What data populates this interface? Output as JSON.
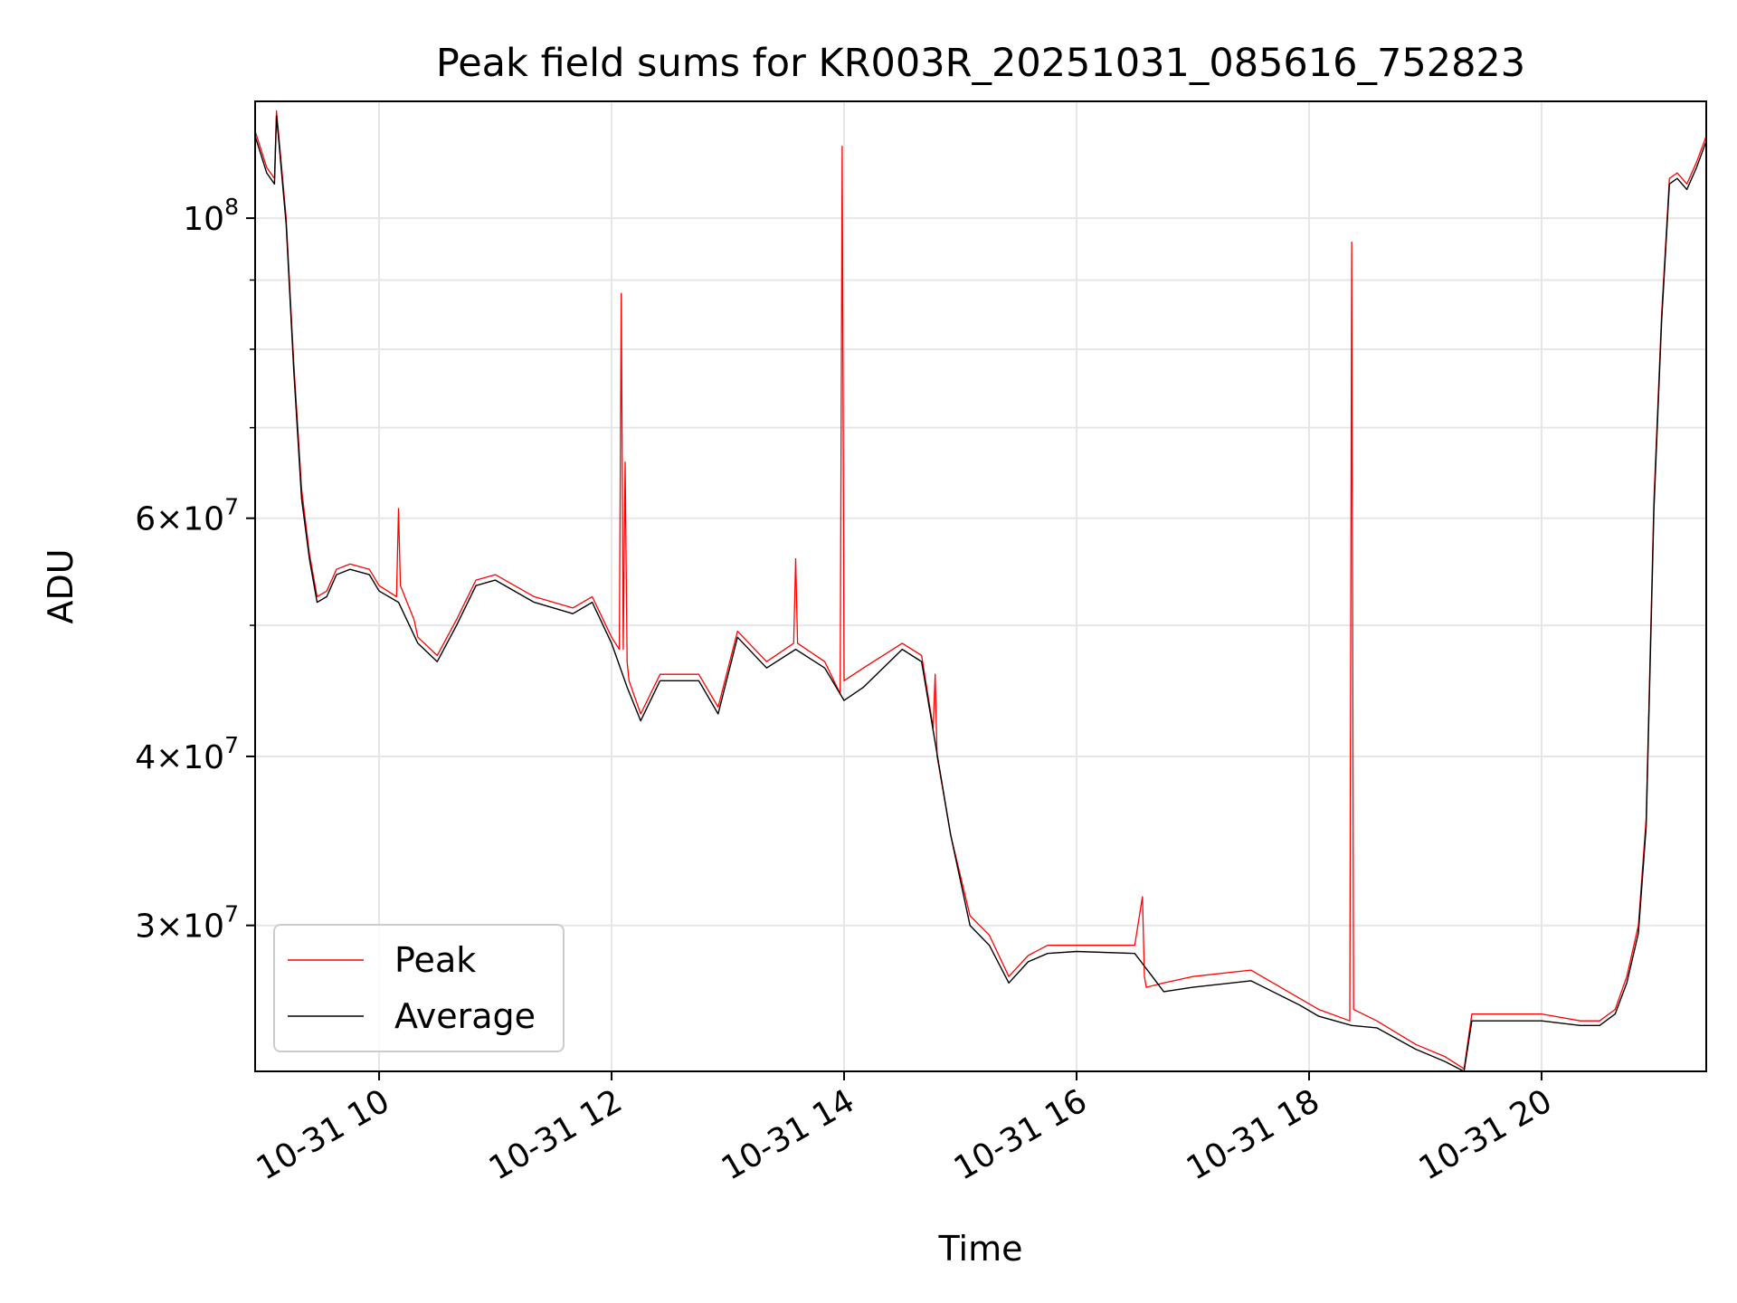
{
  "chart_data": {
    "type": "line",
    "title": "Peak field sums for KR003R_20251031_085616_752823",
    "xlabel": "Time",
    "ylabel": "ADU",
    "xlim": [
      "2025-10-31 08:56",
      "2025-10-31 21:25"
    ],
    "ylim": [
      23400000,
      122000000
    ],
    "yscale": "log",
    "grid": true,
    "legend_position": "lower left",
    "x_ticks": [
      {
        "x": "2025-10-31 10:00",
        "label": "10-31 10"
      },
      {
        "x": "2025-10-31 12:00",
        "label": "10-31 12"
      },
      {
        "x": "2025-10-31 14:00",
        "label": "10-31 14"
      },
      {
        "x": "2025-10-31 16:00",
        "label": "10-31 16"
      },
      {
        "x": "2025-10-31 18:00",
        "label": "10-31 18"
      },
      {
        "x": "2025-10-31 20:00",
        "label": "10-31 20"
      }
    ],
    "y_ticks": [
      {
        "y": 30000000,
        "base": "3",
        "exp": "7"
      },
      {
        "y": 40000000,
        "base": "4",
        "exp": "7"
      },
      {
        "y": 60000000,
        "base": "6",
        "exp": "7"
      },
      {
        "y": 100000000,
        "base": "",
        "exp": "8"
      }
    ],
    "y_minor_ticks": [
      50000000,
      70000000,
      80000000,
      90000000
    ],
    "series": [
      {
        "name": "Peak",
        "color": "#ff0000",
        "x": [
          "2025-10-31 08:56",
          "2025-10-31 09:02",
          "2025-10-31 09:06",
          "2025-10-31 09:07",
          "2025-10-31 09:08",
          "2025-10-31 09:12",
          "2025-10-31 09:16",
          "2025-10-31 09:20",
          "2025-10-31 09:24",
          "2025-10-31 09:28",
          "2025-10-31 09:33",
          "2025-10-31 09:38",
          "2025-10-31 09:45",
          "2025-10-31 09:55",
          "2025-10-31 10:00",
          "2025-10-31 10:09",
          "2025-10-31 10:10",
          "2025-10-31 10:11",
          "2025-10-31 10:18",
          "2025-10-31 10:20",
          "2025-10-31 10:30",
          "2025-10-31 10:40",
          "2025-10-31 10:50",
          "2025-10-31 11:00",
          "2025-10-31 11:20",
          "2025-10-31 11:40",
          "2025-10-31 11:50",
          "2025-10-31 12:00",
          "2025-10-31 12:04",
          "2025-10-31 12:05",
          "2025-10-31 12:06",
          "2025-10-31 12:07",
          "2025-10-31 12:08",
          "2025-10-31 12:09",
          "2025-10-31 12:15",
          "2025-10-31 12:25",
          "2025-10-31 12:45",
          "2025-10-31 12:55",
          "2025-10-31 13:05",
          "2025-10-31 13:20",
          "2025-10-31 13:34",
          "2025-10-31 13:35",
          "2025-10-31 13:36",
          "2025-10-31 13:50",
          "2025-10-31 13:58",
          "2025-10-31 13:59",
          "2025-10-31 14:00",
          "2025-10-31 14:10",
          "2025-10-31 14:30",
          "2025-10-31 14:40",
          "2025-10-31 14:46",
          "2025-10-31 14:47",
          "2025-10-31 14:48",
          "2025-10-31 14:55",
          "2025-10-31 15:05",
          "2025-10-31 15:15",
          "2025-10-31 15:25",
          "2025-10-31 15:35",
          "2025-10-31 15:45",
          "2025-10-31 16:00",
          "2025-10-31 16:30",
          "2025-10-31 16:34",
          "2025-10-31 16:35",
          "2025-10-31 16:36",
          "2025-10-31 16:45",
          "2025-10-31 17:00",
          "2025-10-31 17:30",
          "2025-10-31 17:55",
          "2025-10-31 18:05",
          "2025-10-31 18:21",
          "2025-10-31 18:22",
          "2025-10-31 18:23",
          "2025-10-31 18:35",
          "2025-10-31 18:55",
          "2025-10-31 19:10",
          "2025-10-31 19:20",
          "2025-10-31 19:24",
          "2025-10-31 19:30",
          "2025-10-31 19:45",
          "2025-10-31 20:00",
          "2025-10-31 20:20",
          "2025-10-31 20:30",
          "2025-10-31 20:38",
          "2025-10-31 20:44",
          "2025-10-31 20:50",
          "2025-10-31 20:54",
          "2025-10-31 20:58",
          "2025-10-31 21:02",
          "2025-10-31 21:06",
          "2025-10-31 21:10",
          "2025-10-31 21:15",
          "2025-10-31 21:20",
          "2025-10-31 21:25"
        ],
        "y": [
          116000000,
          109000000,
          107000000,
          120000000,
          116000000,
          100000000,
          78000000,
          63000000,
          56500000,
          52500000,
          53000000,
          55000000,
          55500000,
          55000000,
          53500000,
          52500000,
          61000000,
          53500000,
          50500000,
          49000000,
          47500000,
          50500000,
          54000000,
          54500000,
          52500000,
          51500000,
          52500000,
          49000000,
          48000000,
          88000000,
          48000000,
          66000000,
          47000000,
          45500000,
          43000000,
          46000000,
          46000000,
          43500000,
          49500000,
          47000000,
          48500000,
          56000000,
          48500000,
          47000000,
          44500000,
          113000000,
          45500000,
          46500000,
          48500000,
          47500000,
          42000000,
          46000000,
          40000000,
          35000000,
          30500000,
          29500000,
          27500000,
          28500000,
          29000000,
          29000000,
          29000000,
          31500000,
          27500000,
          27000000,
          27200000,
          27500000,
          27800000,
          26500000,
          26000000,
          25500000,
          96000000,
          26000000,
          25500000,
          24500000,
          24000000,
          23500000,
          25800000,
          25800000,
          25800000,
          25800000,
          25500000,
          25500000,
          26000000,
          27500000,
          30000000,
          36000000,
          62000000,
          85000000,
          107000000,
          108000000,
          106000000,
          110000000,
          115000000
        ]
      },
      {
        "name": "Average",
        "color": "#000000",
        "x": [
          "2025-10-31 08:56",
          "2025-10-31 09:02",
          "2025-10-31 09:06",
          "2025-10-31 09:07",
          "2025-10-31 09:08",
          "2025-10-31 09:12",
          "2025-10-31 09:16",
          "2025-10-31 09:20",
          "2025-10-31 09:24",
          "2025-10-31 09:28",
          "2025-10-31 09:33",
          "2025-10-31 09:38",
          "2025-10-31 09:45",
          "2025-10-31 09:55",
          "2025-10-31 10:00",
          "2025-10-31 10:10",
          "2025-10-31 10:20",
          "2025-10-31 10:30",
          "2025-10-31 10:40",
          "2025-10-31 10:50",
          "2025-10-31 11:00",
          "2025-10-31 11:20",
          "2025-10-31 11:40",
          "2025-10-31 11:50",
          "2025-10-31 12:00",
          "2025-10-31 12:08",
          "2025-10-31 12:15",
          "2025-10-31 12:25",
          "2025-10-31 12:45",
          "2025-10-31 12:55",
          "2025-10-31 13:05",
          "2025-10-31 13:20",
          "2025-10-31 13:35",
          "2025-10-31 13:50",
          "2025-10-31 14:00",
          "2025-10-31 14:10",
          "2025-10-31 14:30",
          "2025-10-31 14:40",
          "2025-10-31 14:55",
          "2025-10-31 15:05",
          "2025-10-31 15:15",
          "2025-10-31 15:25",
          "2025-10-31 15:35",
          "2025-10-31 15:45",
          "2025-10-31 16:00",
          "2025-10-31 16:30",
          "2025-10-31 16:45",
          "2025-10-31 17:00",
          "2025-10-31 17:30",
          "2025-10-31 17:55",
          "2025-10-31 18:05",
          "2025-10-31 18:22",
          "2025-10-31 18:35",
          "2025-10-31 18:55",
          "2025-10-31 19:10",
          "2025-10-31 19:20",
          "2025-10-31 19:24",
          "2025-10-31 19:30",
          "2025-10-31 19:45",
          "2025-10-31 20:00",
          "2025-10-31 20:20",
          "2025-10-31 20:30",
          "2025-10-31 20:38",
          "2025-10-31 20:44",
          "2025-10-31 20:50",
          "2025-10-31 20:54",
          "2025-10-31 20:58",
          "2025-10-31 21:02",
          "2025-10-31 21:06",
          "2025-10-31 21:10",
          "2025-10-31 21:15",
          "2025-10-31 21:20",
          "2025-10-31 21:25"
        ],
        "y": [
          115000000,
          108000000,
          106000000,
          119000000,
          115000000,
          99000000,
          77000000,
          62000000,
          56000000,
          52000000,
          52500000,
          54500000,
          55000000,
          54500000,
          53000000,
          52000000,
          48500000,
          47000000,
          50000000,
          53500000,
          54000000,
          52000000,
          51000000,
          52000000,
          48500000,
          45000000,
          42500000,
          45500000,
          45500000,
          43000000,
          49000000,
          46500000,
          48000000,
          46500000,
          44000000,
          45000000,
          48000000,
          47000000,
          35000000,
          30000000,
          29000000,
          27200000,
          28200000,
          28600000,
          28700000,
          28600000,
          26800000,
          27000000,
          27300000,
          26200000,
          25700000,
          25300000,
          25200000,
          24300000,
          23800000,
          23400000,
          25500000,
          25500000,
          25500000,
          25500000,
          25300000,
          25300000,
          25800000,
          27200000,
          29600000,
          35500000,
          61000000,
          84000000,
          106000000,
          107000000,
          105000000,
          109000000,
          114000000
        ]
      }
    ]
  }
}
